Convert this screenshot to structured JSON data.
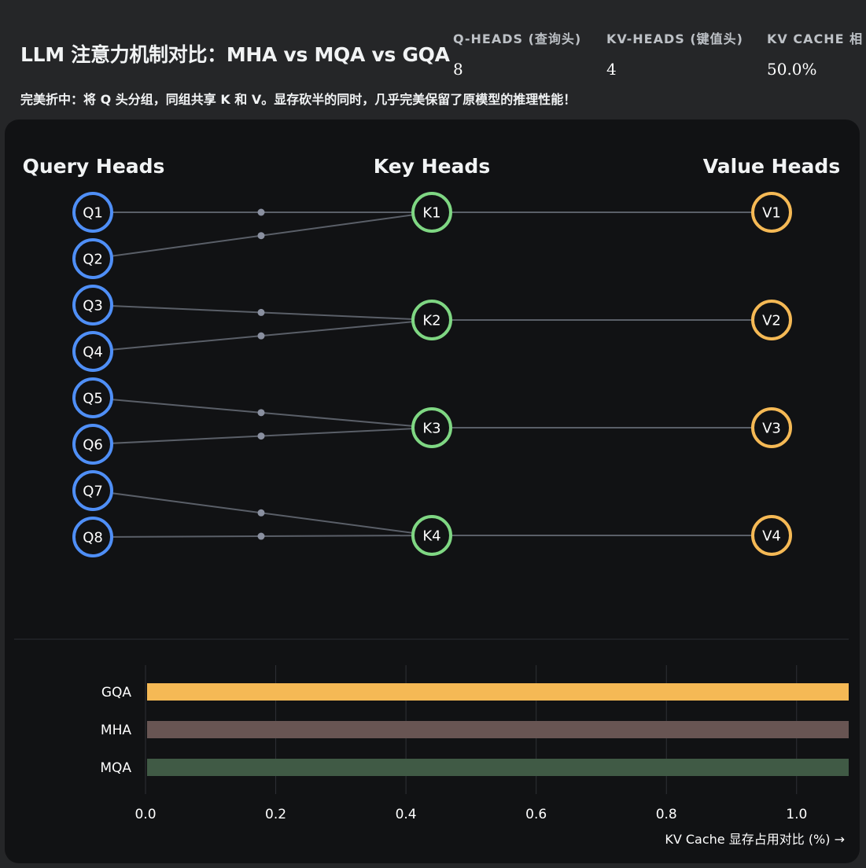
{
  "header": {
    "title": "LLM 注意力机制对比：MHA vs MQA vs GQA",
    "subtitle": "完美折中：将 Q 头分组，同组共享 K 和 V。显存砍半的同时，几乎完美保留了原模型的推理性能！"
  },
  "stats": [
    {
      "label": "Q-HEADS (查询头)",
      "value": "8"
    },
    {
      "label": "KV-HEADS (键值头)",
      "value": "4"
    },
    {
      "label": "KV CACHE 相",
      "value": "50.0%"
    }
  ],
  "diagram": {
    "columns": {
      "query": "Query Heads",
      "key": "Key Heads",
      "value": "Value Heads"
    },
    "query_heads": [
      "Q1",
      "Q2",
      "Q3",
      "Q4",
      "Q5",
      "Q6",
      "Q7",
      "Q8"
    ],
    "key_heads": [
      "K1",
      "K2",
      "K3",
      "K4"
    ],
    "value_heads": [
      "V1",
      "V2",
      "V3",
      "V4"
    ],
    "group_map": [
      0,
      0,
      1,
      1,
      2,
      2,
      3,
      3
    ],
    "colors": {
      "query": "#4f8ff7",
      "key": "#7fd783",
      "value": "#f5b955",
      "link": "#5a5f68",
      "dot": "#8a90a0"
    }
  },
  "chart_data": {
    "type": "bar",
    "orientation": "horizontal",
    "categories": [
      "GQA",
      "MHA",
      "MQA"
    ],
    "values": [
      1.08,
      1.08,
      1.08
    ],
    "colors": [
      "#f5b955",
      "#685553",
      "#405a45"
    ],
    "xlim": [
      0,
      1.08
    ],
    "xticks": [
      0.0,
      0.2,
      0.4,
      0.6,
      0.8,
      1.0
    ],
    "xtick_labels": [
      "0.0",
      "0.2",
      "0.4",
      "0.6",
      "0.8",
      "1.0"
    ],
    "xlabel": "KV Cache 显存占用对比 (%) →",
    "grid": true
  }
}
